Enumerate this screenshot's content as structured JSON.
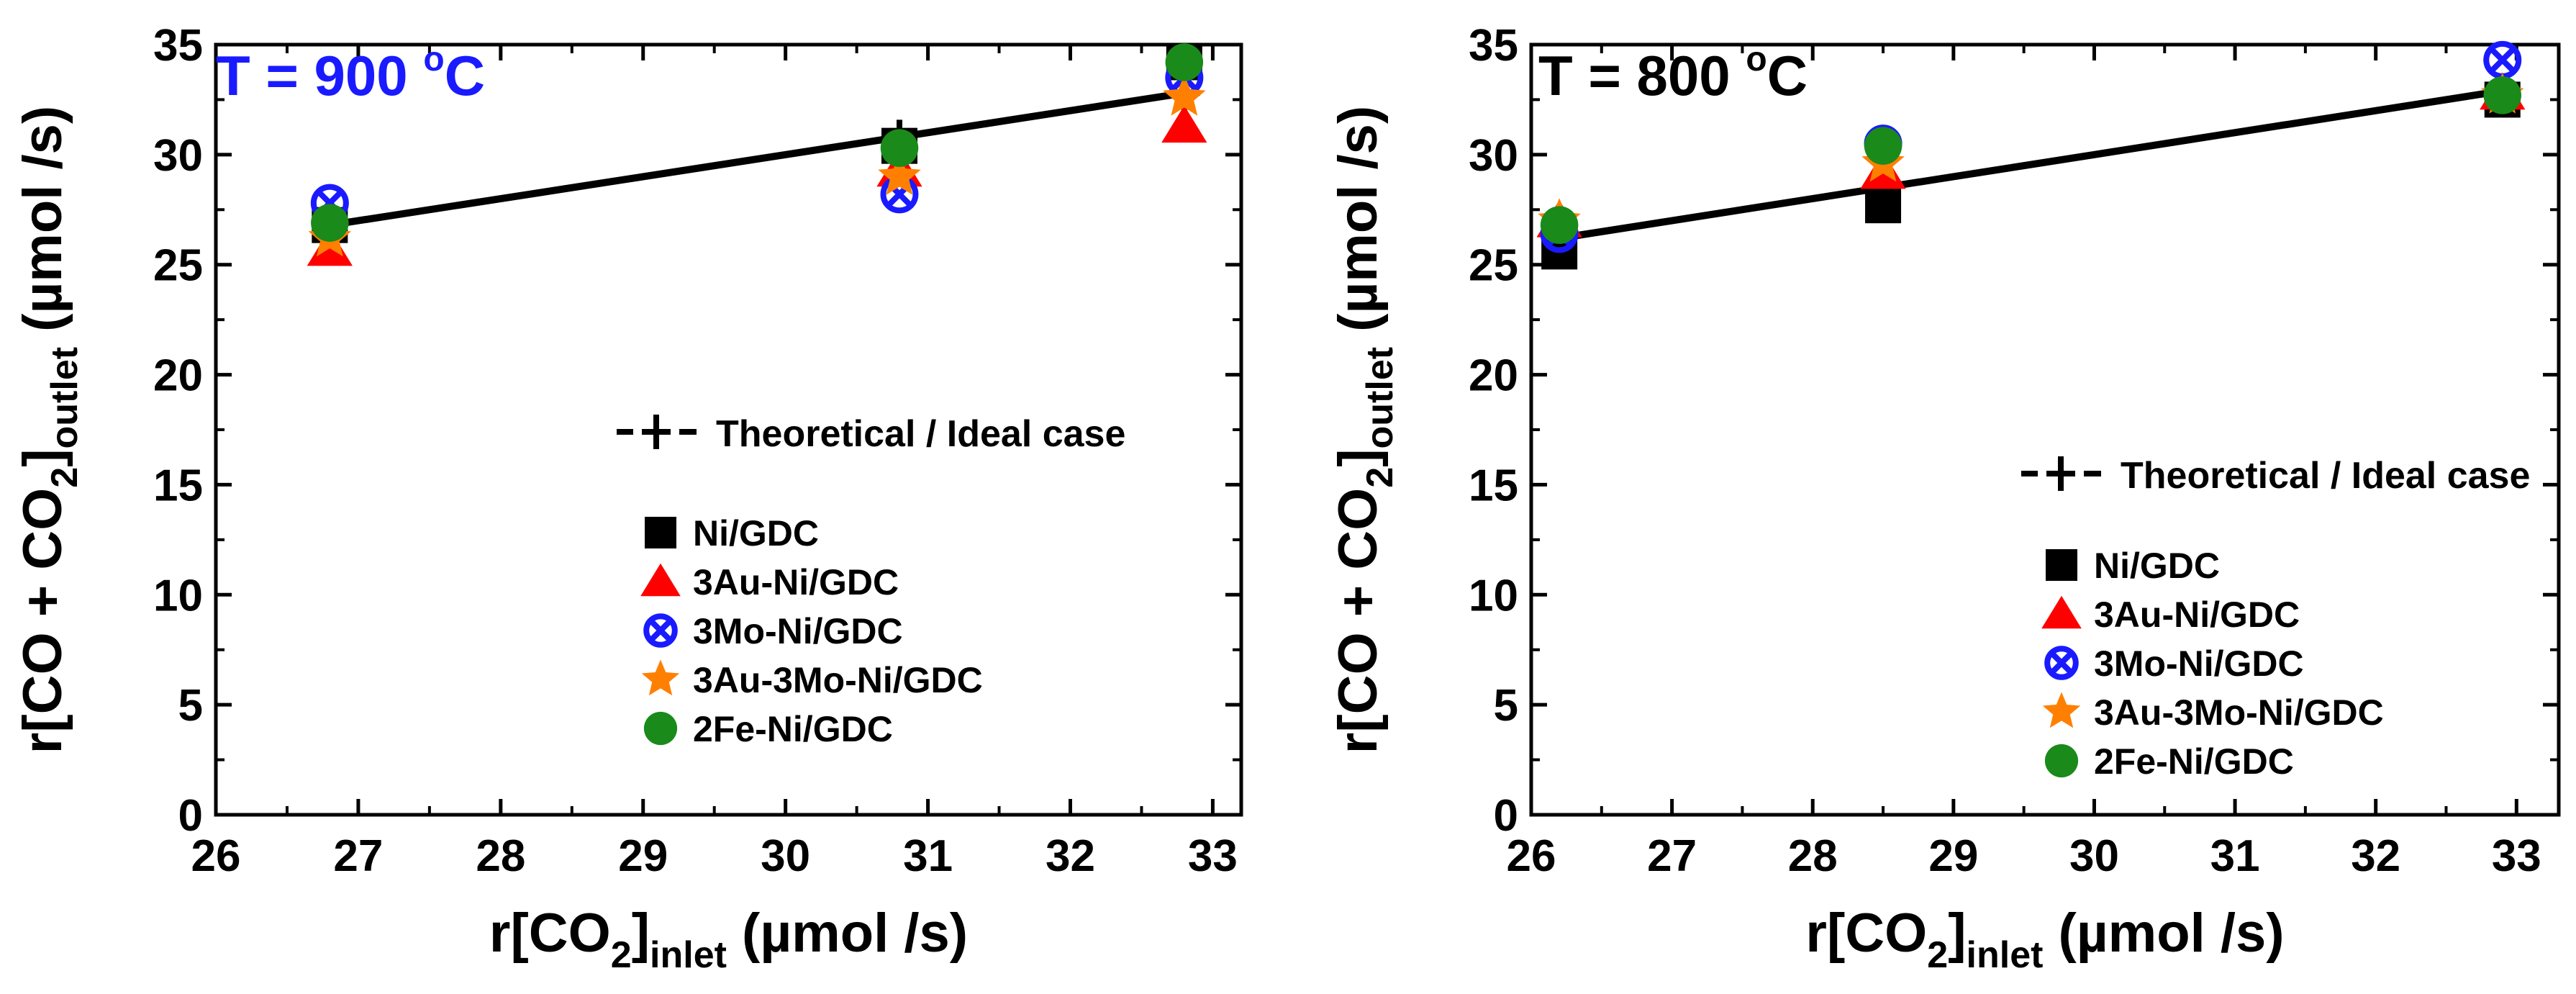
{
  "chart_data": [
    {
      "type": "scatter",
      "annotation": "T = 900 °C",
      "annotation_parts": {
        "prefix": "T = 900 ",
        "degree": "o",
        "unit": "C"
      },
      "annotation_color": "#1a1aff",
      "xlabel": {
        "main": "r[CO",
        "sub1": "2",
        "close": "]",
        "sub2": "inlet",
        "unit": " (µmol /s)"
      },
      "ylabel": {
        "main": "r[CO + CO",
        "sub1": "2",
        "close": "]",
        "sub2": "outlet",
        "unit": " (µmol /s)"
      },
      "xlim": [
        26,
        33.2
      ],
      "ylim": [
        0,
        35
      ],
      "xticks": [
        26,
        27,
        28,
        29,
        30,
        31,
        32,
        33
      ],
      "yticks": [
        0,
        5,
        10,
        15,
        20,
        25,
        30,
        35
      ],
      "theoretical": {
        "name": "Theoretical / Ideal case",
        "x": [
          26.8,
          30.8,
          32.8
        ],
        "y": [
          26.8,
          30.8,
          32.8
        ]
      },
      "series": [
        {
          "name": "Ni/GDC",
          "marker": "square",
          "color": "#000000",
          "x": [
            26.8,
            30.8,
            32.8
          ],
          "y": [
            26.8,
            30.4,
            34.2
          ]
        },
        {
          "name": "3Au-Ni/GDC",
          "marker": "triangle",
          "color": "#ff0000",
          "x": [
            26.8,
            30.8,
            32.8
          ],
          "y": [
            25.7,
            29.3,
            31.3
          ]
        },
        {
          "name": "3Mo-Ni/GDC",
          "marker": "circle-x",
          "color": "#1a1aff",
          "x": [
            26.8,
            30.8,
            32.8
          ],
          "y": [
            27.8,
            28.2,
            33.5
          ]
        },
        {
          "name": "3Au-3Mo-Ni/GDC",
          "marker": "star",
          "color": "#ff8000",
          "x": [
            26.8,
            30.8,
            32.8
          ],
          "y": [
            26.2,
            29.0,
            32.6
          ]
        },
        {
          "name": "2Fe-Ni/GDC",
          "marker": "circle",
          "color": "#1a8a1a",
          "x": [
            26.8,
            30.8,
            32.8
          ],
          "y": [
            26.9,
            30.3,
            34.2
          ]
        }
      ]
    },
    {
      "type": "scatter",
      "annotation": "T = 800 °C",
      "annotation_parts": {
        "prefix": "T = 800 ",
        "degree": "o",
        "unit": "C"
      },
      "annotation_color": "#000000",
      "xlabel": {
        "main": "r[CO",
        "sub1": "2",
        "close": "]",
        "sub2": "inlet",
        "unit": " (µmol /s)"
      },
      "ylabel": {
        "main": "r[CO + CO",
        "sub1": "2",
        "close": "]",
        "sub2": "outlet",
        "unit": " (µmol /s)"
      },
      "xlim": [
        26,
        33.3
      ],
      "ylim": [
        0,
        35
      ],
      "xticks": [
        26,
        27,
        28,
        29,
        30,
        31,
        32,
        33
      ],
      "yticks": [
        0,
        5,
        10,
        15,
        20,
        25,
        30,
        35
      ],
      "theoretical": {
        "name": "Theoretical / Ideal case",
        "x": [
          26.2,
          28.5,
          32.9
        ],
        "y": [
          26.2,
          28.5,
          32.9
        ]
      },
      "series": [
        {
          "name": "Ni/GDC",
          "marker": "square",
          "color": "#000000",
          "x": [
            26.2,
            28.5,
            32.9
          ],
          "y": [
            25.6,
            27.7,
            32.5
          ]
        },
        {
          "name": "3Au-Ni/GDC",
          "marker": "triangle",
          "color": "#ff0000",
          "x": [
            26.2,
            28.5,
            32.9
          ],
          "y": [
            27.0,
            29.2,
            32.8
          ]
        },
        {
          "name": "3Mo-Ni/GDC",
          "marker": "circle-x",
          "color": "#1a1aff",
          "x": [
            26.2,
            28.5,
            32.9
          ],
          "y": [
            26.4,
            30.5,
            34.3
          ]
        },
        {
          "name": "3Au-3Mo-Ni/GDC",
          "marker": "star",
          "color": "#ff8000",
          "x": [
            26.2,
            28.5,
            32.9
          ],
          "y": [
            27.0,
            29.6,
            32.7
          ]
        },
        {
          "name": "2Fe-Ni/GDC",
          "marker": "circle",
          "color": "#1a8a1a",
          "x": [
            26.2,
            28.5,
            32.9
          ],
          "y": [
            26.8,
            30.4,
            32.7
          ]
        }
      ]
    }
  ]
}
